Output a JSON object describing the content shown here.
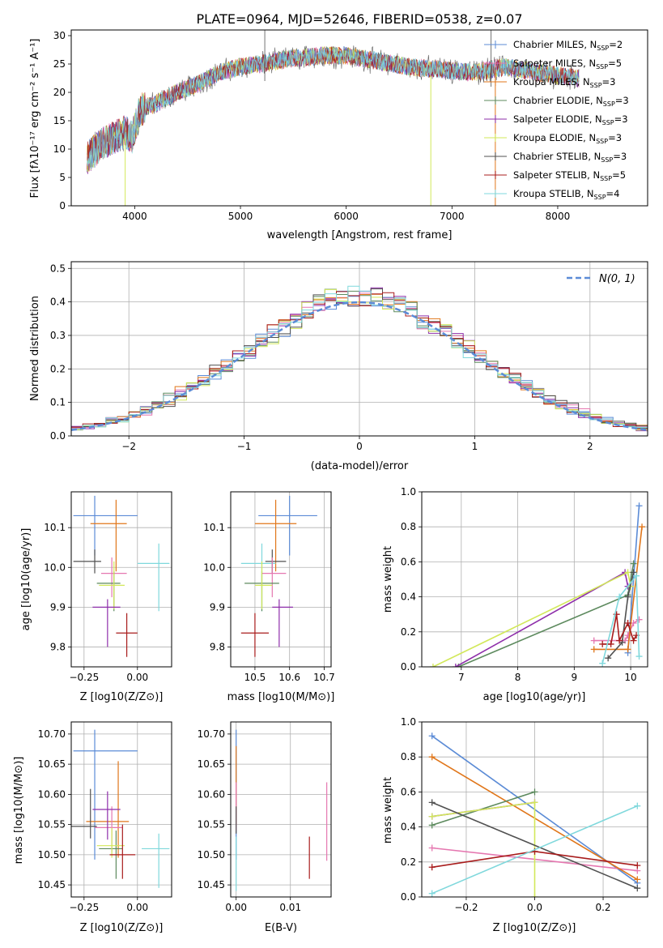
{
  "figure_title": "PLATE=0964, MJD=52646, FIBERID=0538, z=0.07",
  "colors": {
    "Chabrier MILES": "#5b8bd6",
    "Salpeter MILES": "#e577b0",
    "Kroupa MILES": "#e0761a",
    "Chabrier ELODIE": "#5d8a5e",
    "Salpeter ELODIE": "#8e2eaa",
    "Kroupa ELODIE": "#d2e85a",
    "Chabrier STELIB": "#505050",
    "Salpeter STELIB": "#a81c1c",
    "Kroupa STELIB": "#7fd8dc"
  },
  "chart_data": [
    {
      "id": "spectrum",
      "type": "line",
      "xlabel": "wavelength [Angstrom, rest frame]",
      "ylabel": "Flux [fλ10⁻¹⁷ erg cm⁻² s⁻¹ A⁻¹]",
      "xlim": [
        3400,
        8850
      ],
      "ylim": [
        0,
        31
      ],
      "xticks": [
        4000,
        5000,
        6000,
        7000,
        8000
      ],
      "yticks": [
        0,
        5,
        10,
        15,
        20,
        25,
        30
      ],
      "legend": "right",
      "legend_entries": [
        "Chabrier MILES, N_SSP=2",
        "Salpeter MILES, N_SSP=5",
        "Kroupa MILES, N_SSP=3",
        "Chabrier ELODIE, N_SSP=3",
        "Salpeter ELODIE, N_SSP=3",
        "Kroupa ELODIE, N_SSP=3",
        "Chabrier STELIB, N_SSP=3",
        "Salpeter STELIB, N_SSP=5",
        "Kroupa STELIB, N_SSP=4"
      ],
      "continuum": [
        [
          3550,
          8.5
        ],
        [
          3700,
          11
        ],
        [
          3800,
          12
        ],
        [
          3900,
          13
        ],
        [
          3980,
          12
        ],
        [
          4050,
          17
        ],
        [
          4200,
          18
        ],
        [
          4400,
          20
        ],
        [
          4600,
          21.5
        ],
        [
          4800,
          23.5
        ],
        [
          5000,
          24.5
        ],
        [
          5200,
          25
        ],
        [
          5500,
          26
        ],
        [
          5800,
          26.5
        ],
        [
          6000,
          26.5
        ],
        [
          6300,
          25.5
        ],
        [
          6600,
          24.5
        ],
        [
          6900,
          24
        ],
        [
          7200,
          23.5
        ],
        [
          7500,
          24.5
        ],
        [
          7800,
          23.5
        ],
        [
          8000,
          23
        ],
        [
          8200,
          22.5
        ]
      ]
    },
    {
      "id": "residuals",
      "type": "histogram",
      "xlabel": "(data-model)/error",
      "ylabel": "Normed distribution",
      "xlim": [
        -2.5,
        2.5
      ],
      "ylim": [
        0,
        0.52
      ],
      "xticks": [
        -2,
        -1,
        0,
        1,
        2
      ],
      "yticks": [
        0.0,
        0.1,
        0.2,
        0.3,
        0.4,
        0.5
      ],
      "legend": "top-right",
      "legend_entry": "N(0, 1)",
      "bin_width": 0.1
    },
    {
      "id": "age_vs_Z",
      "type": "errorbar",
      "xlabel": "Z [log10(Z/Z⊙)]",
      "ylabel": "age [log10(age/yr)]",
      "xlim": [
        -0.31,
        0.16
      ],
      "ylim": [
        9.75,
        10.19
      ],
      "xticks": [
        -0.25,
        0.0
      ],
      "yticks": [
        9.8,
        9.9,
        10.0,
        10.1
      ],
      "points": [
        {
          "series": "Chabrier MILES",
          "x": -0.2,
          "xerr": [
            0.1,
            0.2
          ],
          "y": 10.13,
          "yerr": [
            0.1,
            0.05
          ]
        },
        {
          "series": "Kroupa MILES",
          "x": -0.1,
          "xerr": [
            0.12,
            0.05
          ],
          "y": 10.11,
          "yerr": [
            0.12,
            0.06
          ]
        },
        {
          "series": "Chabrier STELIB",
          "x": -0.2,
          "xerr": [
            0.1,
            0.03
          ],
          "y": 10.015,
          "yerr": [
            0.03,
            0.03
          ]
        },
        {
          "series": "Kroupa STELIB",
          "x": 0.1,
          "xerr": [
            0.1,
            0.05
          ],
          "y": 10.01,
          "yerr": [
            0.12,
            0.05
          ]
        },
        {
          "series": "Salpeter MILES",
          "x": -0.12,
          "xerr": [
            0.05,
            0.07
          ],
          "y": 9.985,
          "yerr": [
            0.06,
            0.04
          ]
        },
        {
          "series": "Chabrier ELODIE",
          "x": -0.11,
          "xerr": [
            0.08,
            0.03
          ],
          "y": 9.96,
          "yerr": [
            0.07,
            0.03
          ]
        },
        {
          "series": "Kroupa ELODIE",
          "x": -0.11,
          "xerr": [
            0.07,
            0.05
          ],
          "y": 9.955,
          "yerr": [
            0.06,
            0.06
          ]
        },
        {
          "series": "Salpeter ELODIE",
          "x": -0.14,
          "xerr": [
            0.07,
            0.06
          ],
          "y": 9.9,
          "yerr": [
            0.1,
            0.02
          ]
        },
        {
          "series": "Salpeter STELIB",
          "x": -0.05,
          "xerr": [
            0.05,
            0.05
          ],
          "y": 9.835,
          "yerr": [
            0.06,
            0.05
          ]
        }
      ]
    },
    {
      "id": "age_vs_mass",
      "type": "errorbar",
      "xlabel": "mass [log10(M/M⊙)]",
      "ylabel": "",
      "xlim": [
        10.43,
        10.72
      ],
      "ylim": [
        9.75,
        10.19
      ],
      "xticks": [
        10.5,
        10.6,
        10.7
      ],
      "yticks": [
        9.8,
        9.9,
        10.0,
        10.1
      ],
      "points": [
        {
          "series": "Chabrier MILES",
          "x": 10.6,
          "xerr": [
            0.09,
            0.08
          ],
          "y": 10.13,
          "yerr": [
            0.1,
            0.05
          ]
        },
        {
          "series": "Kroupa MILES",
          "x": 10.56,
          "xerr": [
            0.06,
            0.06
          ],
          "y": 10.11,
          "yerr": [
            0.12,
            0.06
          ]
        },
        {
          "series": "Chabrier STELIB",
          "x": 10.55,
          "xerr": [
            0.02,
            0.04
          ],
          "y": 10.015,
          "yerr": [
            0.03,
            0.03
          ]
        },
        {
          "series": "Kroupa STELIB",
          "x": 10.52,
          "xerr": [
            0.06,
            0.04
          ],
          "y": 10.01,
          "yerr": [
            0.12,
            0.05
          ]
        },
        {
          "series": "Salpeter MILES",
          "x": 10.55,
          "xerr": [
            0.03,
            0.04
          ],
          "y": 9.985,
          "yerr": [
            0.06,
            0.04
          ]
        },
        {
          "series": "Chabrier ELODIE",
          "x": 10.52,
          "xerr": [
            0.05,
            0.05
          ],
          "y": 9.96,
          "yerr": [
            0.07,
            0.03
          ]
        },
        {
          "series": "Kroupa ELODIE",
          "x": 10.52,
          "xerr": [
            0.02,
            0.03
          ],
          "y": 9.955,
          "yerr": [
            0.06,
            0.06
          ]
        },
        {
          "series": "Salpeter ELODIE",
          "x": 10.57,
          "xerr": [
            0.02,
            0.04
          ],
          "y": 9.9,
          "yerr": [
            0.1,
            0.02
          ]
        },
        {
          "series": "Salpeter STELIB",
          "x": 10.5,
          "xerr": [
            0.04,
            0.04
          ],
          "y": 9.835,
          "yerr": [
            0.06,
            0.05
          ]
        }
      ]
    },
    {
      "id": "massweight_vs_age",
      "type": "line",
      "xlabel": "age [log10(age/yr)]",
      "ylabel": "mass weight",
      "xlim": [
        6.3,
        10.3
      ],
      "ylim": [
        0,
        1.0
      ],
      "xticks": [
        7,
        8,
        9,
        10
      ],
      "yticks": [
        0.0,
        0.2,
        0.4,
        0.6,
        0.8,
        1.0
      ],
      "series": [
        {
          "series": "Chabrier MILES",
          "points": [
            [
              9.95,
              0.08
            ],
            [
              10.15,
              0.92
            ]
          ]
        },
        {
          "series": "Salpeter MILES",
          "points": [
            [
              9.35,
              0.15
            ],
            [
              9.9,
              0.15
            ],
            [
              9.95,
              0.18
            ],
            [
              10.05,
              0.25
            ],
            [
              10.15,
              0.27
            ]
          ]
        },
        {
          "series": "Kroupa MILES",
          "points": [
            [
              9.35,
              0.1
            ],
            [
              9.95,
              0.1
            ],
            [
              10.2,
              0.8
            ]
          ]
        },
        {
          "series": "Chabrier ELODIE",
          "points": [
            [
              6.95,
              0.0
            ],
            [
              9.95,
              0.41
            ],
            [
              10.05,
              0.59
            ]
          ]
        },
        {
          "series": "Salpeter ELODIE",
          "points": [
            [
              6.9,
              0.0
            ],
            [
              9.9,
              0.54
            ],
            [
              9.95,
              0.46
            ]
          ]
        },
        {
          "series": "Kroupa ELODIE",
          "points": [
            [
              6.5,
              0.0
            ],
            [
              9.95,
              0.54
            ],
            [
              10.0,
              0.46
            ]
          ]
        },
        {
          "series": "Chabrier STELIB",
          "points": [
            [
              9.6,
              0.05
            ],
            [
              9.85,
              0.14
            ],
            [
              9.95,
              0.4
            ],
            [
              10.05,
              0.54
            ]
          ]
        },
        {
          "series": "Salpeter STELIB",
          "points": [
            [
              9.5,
              0.13
            ],
            [
              9.65,
              0.13
            ],
            [
              9.75,
              0.3
            ],
            [
              9.8,
              0.15
            ],
            [
              9.95,
              0.25
            ],
            [
              10.05,
              0.15
            ],
            [
              10.1,
              0.18
            ]
          ]
        },
        {
          "series": "Kroupa STELIB",
          "points": [
            [
              9.5,
              0.02
            ],
            [
              9.8,
              0.4
            ],
            [
              10.1,
              0.52
            ],
            [
              10.15,
              0.06
            ]
          ]
        }
      ]
    },
    {
      "id": "mass_vs_Z",
      "type": "errorbar",
      "xlabel": "Z [log10(Z/Z⊙)]",
      "ylabel": "mass [log10(M/M⊙)]",
      "xlim": [
        -0.31,
        0.16
      ],
      "ylim": [
        10.43,
        10.72
      ],
      "xticks": [
        -0.25,
        0.0
      ],
      "yticks": [
        10.45,
        10.5,
        10.55,
        10.6,
        10.65,
        10.7
      ],
      "points": [
        {
          "series": "Chabrier MILES",
          "x": -0.2,
          "xerr": [
            0.1,
            0.2
          ],
          "y": 10.672,
          "yerr": [
            0.18,
            0.035
          ]
        },
        {
          "series": "Kroupa MILES",
          "x": -0.09,
          "xerr": [
            0.15,
            0.05
          ],
          "y": 10.555,
          "yerr": [
            0.06,
            0.1
          ]
        },
        {
          "series": "Chabrier STELIB",
          "x": -0.22,
          "xerr": [
            0.1,
            0.03
          ],
          "y": 10.547,
          "yerr": [
            0.02,
            0.062
          ]
        },
        {
          "series": "Kroupa STELIB",
          "x": 0.1,
          "xerr": [
            0.08,
            0.05
          ],
          "y": 10.51,
          "yerr": [
            0.065,
            0.025
          ]
        },
        {
          "series": "Salpeter MILES",
          "x": -0.12,
          "xerr": [
            0.08,
            0.05
          ],
          "y": 10.545,
          "yerr": [
            0.04,
            0.035
          ]
        },
        {
          "series": "Chabrier ELODIE",
          "x": -0.1,
          "xerr": [
            0.08,
            0.03
          ],
          "y": 10.51,
          "yerr": [
            0.05,
            0.03
          ]
        },
        {
          "series": "Kroupa ELODIE",
          "x": -0.12,
          "xerr": [
            0.07,
            0.06
          ],
          "y": 10.515,
          "yerr": [
            0.02,
            0.03
          ]
        },
        {
          "series": "Salpeter ELODIE",
          "x": -0.14,
          "xerr": [
            0.07,
            0.06
          ],
          "y": 10.575,
          "yerr": [
            0.05,
            0.03
          ]
        },
        {
          "series": "Salpeter STELIB",
          "x": -0.07,
          "xerr": [
            0.06,
            0.06
          ],
          "y": 10.5,
          "yerr": [
            0.04,
            0.05
          ]
        }
      ]
    },
    {
      "id": "mass_vs_EBV",
      "type": "errorbar",
      "xlabel": "E(B-V)",
      "ylabel": "",
      "xlim": [
        -0.001,
        0.0175
      ],
      "ylim": [
        10.43,
        10.72
      ],
      "xticks": [
        0.0,
        0.01
      ],
      "yticks": [
        10.45,
        10.5,
        10.55,
        10.6,
        10.65,
        10.7
      ],
      "points": [
        {
          "series": "Chabrier MILES",
          "x": 0.0,
          "y": 10.672,
          "yerr": [
            0.18,
            0.035
          ]
        },
        {
          "series": "Kroupa MILES",
          "x": 0.0,
          "y": 10.61,
          "yerr": [
            0.06,
            0.07
          ]
        },
        {
          "series": "Salpeter MILES",
          "x": 0.0,
          "y": 10.58,
          "yerr": [
            0.04,
            0.04
          ]
        },
        {
          "series": "Chabrier STELIB",
          "x": 0.0,
          "y": 10.56,
          "yerr": [
            0.025,
            0.02
          ]
        },
        {
          "series": "Kroupa STELIB",
          "x": 0.0,
          "y": 10.5,
          "yerr": [
            0.06,
            0.03
          ]
        },
        {
          "series": "Salpeter STELIB",
          "x": 0.0135,
          "y": 10.49,
          "yerr": [
            0.03,
            0.04
          ]
        },
        {
          "series": "Salpeter MILES",
          "x": 0.0167,
          "y": 10.555,
          "yerr": [
            0.065,
            0.065
          ]
        }
      ]
    },
    {
      "id": "massweight_vs_Z",
      "type": "line",
      "xlabel": "Z [log10(Z/Z⊙)]",
      "ylabel": "mass weight",
      "xlim": [
        -0.33,
        0.33
      ],
      "ylim": [
        0,
        1.0
      ],
      "xticks": [
        -0.2,
        0.0,
        0.2
      ],
      "yticks": [
        0.0,
        0.2,
        0.4,
        0.6,
        0.8,
        1.0
      ],
      "series": [
        {
          "series": "Chabrier MILES",
          "points": [
            [
              -0.3,
              0.92
            ],
            [
              0.3,
              0.08
            ]
          ]
        },
        {
          "series": "Salpeter MILES",
          "points": [
            [
              -0.3,
              0.28
            ],
            [
              0.3,
              0.15
            ]
          ]
        },
        {
          "series": "Kroupa MILES",
          "points": [
            [
              -0.3,
              0.8
            ],
            [
              0.3,
              0.1
            ]
          ]
        },
        {
          "series": "Chabrier ELODIE",
          "points": [
            [
              -0.3,
              0.41
            ],
            [
              0.0,
              0.6
            ]
          ]
        },
        {
          "series": "Salpeter ELODIE",
          "points": [
            [
              -0.3,
              0.46
            ],
            [
              0.0,
              0.54
            ]
          ]
        },
        {
          "series": "Kroupa ELODIE",
          "points": [
            [
              -0.3,
              0.46
            ],
            [
              0.0,
              0.54
            ],
            [
              0.0,
              0.0
            ]
          ]
        },
        {
          "series": "Chabrier STELIB",
          "points": [
            [
              -0.3,
              0.54
            ],
            [
              0.3,
              0.05
            ]
          ]
        },
        {
          "series": "Salpeter STELIB",
          "points": [
            [
              -0.3,
              0.17
            ],
            [
              0.0,
              0.26
            ],
            [
              0.3,
              0.18
            ]
          ]
        },
        {
          "series": "Kroupa STELIB",
          "points": [
            [
              -0.3,
              0.02
            ],
            [
              0.3,
              0.52
            ]
          ]
        }
      ]
    }
  ]
}
